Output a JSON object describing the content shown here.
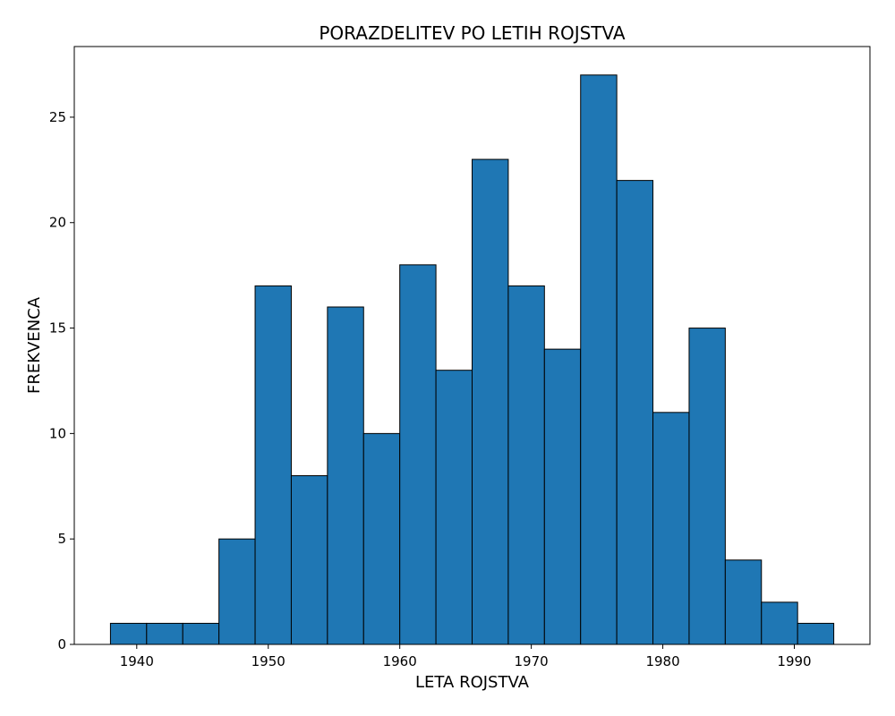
{
  "chart_data": {
    "type": "bar",
    "title": "PORAZDELITEV PO LETIH ROJSTVA",
    "xlabel": "LETA ROJSTVA",
    "ylabel": "FREKVENCA",
    "bar_color": "#1f77b4",
    "edge_color": "#000000",
    "bin_edges": [
      1938.0,
      1940.75,
      1943.5,
      1946.25,
      1949.0,
      1951.75,
      1954.5,
      1957.25,
      1960.0,
      1962.75,
      1965.5,
      1968.25,
      1971.0,
      1973.75,
      1976.5,
      1979.25,
      1982.0,
      1984.75,
      1987.5,
      1990.25,
      1993.0
    ],
    "values": [
      1,
      1,
      1,
      5,
      17,
      8,
      16,
      10,
      18,
      13,
      23,
      17,
      14,
      27,
      22,
      11,
      15,
      4,
      2,
      1
    ],
    "xlim": [
      1935.25,
      1995.75
    ],
    "ylim": [
      0,
      28.35
    ],
    "xticks": [
      1940,
      1950,
      1960,
      1970,
      1980,
      1990
    ],
    "yticks": [
      0,
      5,
      10,
      15,
      20,
      25
    ],
    "grid": false
  }
}
